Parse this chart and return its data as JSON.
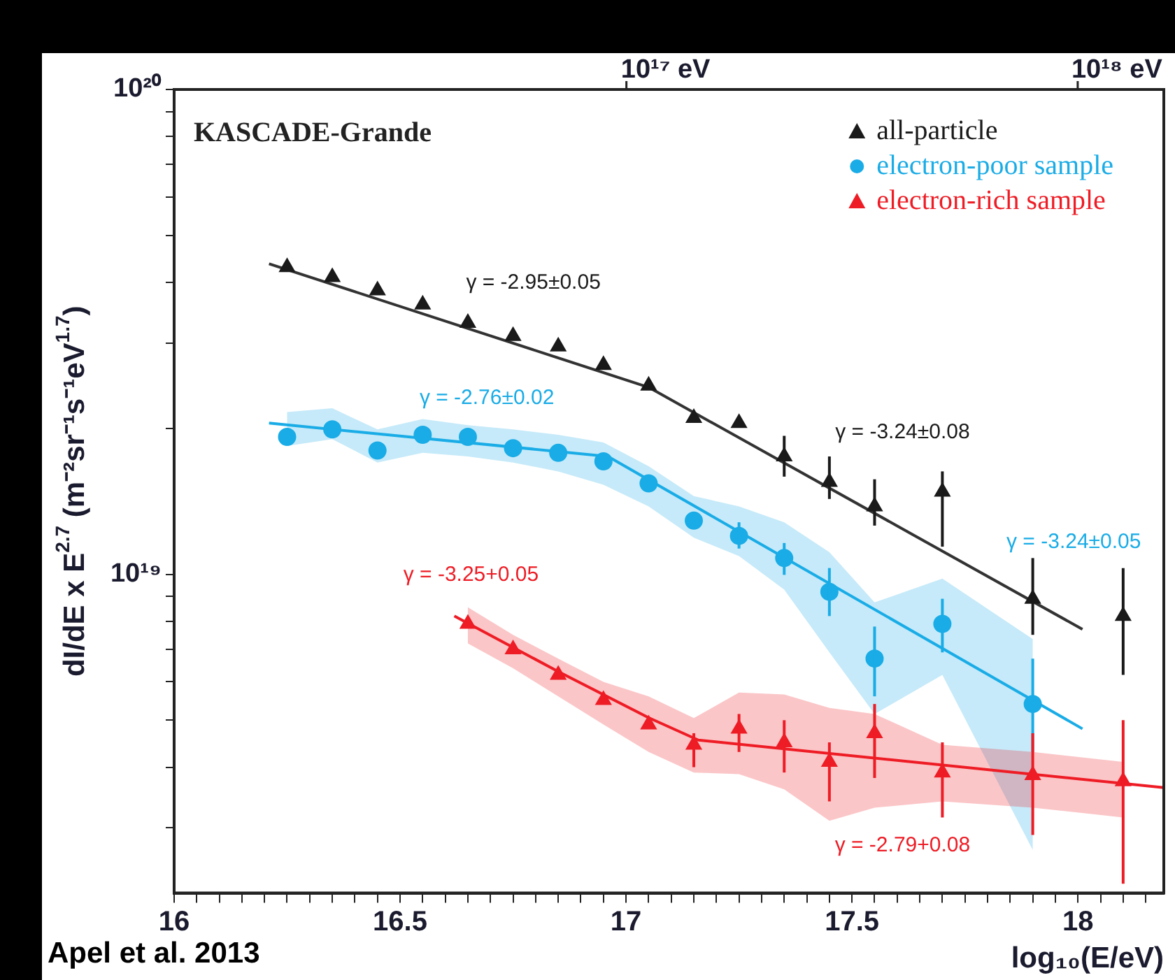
{
  "chart_data": {
    "type": "scatter",
    "ylabel": "dI/dE x E$^{2.7}$ (m⁻²sr⁻¹s⁻¹eV$^{1.7}$)",
    "xlabel": "log₁₀(E/eV)",
    "xlim": [
      16,
      18.19
    ],
    "ylim": [
      2.2e+18,
      1e+20
    ],
    "log": "y",
    "legend": "top right",
    "xticks": [
      16,
      {
        "value": 16.05,
        "label": null
      },
      {
        "value": 16.1,
        "label": null
      },
      {
        "value": 16.15,
        "label": null
      },
      {
        "value": 16.2,
        "label": null
      },
      {
        "value": 16.25,
        "label": null
      },
      {
        "value": 16.3,
        "label": null
      },
      {
        "value": 16.35,
        "label": null
      },
      {
        "value": 16.4,
        "label": null
      },
      {
        "value": 16.45,
        "label": null
      },
      16.5,
      {
        "value": 16.55,
        "label": null
      },
      {
        "value": 16.6,
        "label": null
      },
      {
        "value": 16.65,
        "label": null
      },
      {
        "value": 16.7,
        "label": null
      },
      {
        "value": 16.75,
        "label": null
      },
      {
        "value": 16.8,
        "label": null
      },
      {
        "value": 16.85,
        "label": null
      },
      {
        "value": 16.9,
        "label": null
      },
      {
        "value": 16.95,
        "label": null
      },
      17,
      {
        "value": 17.05,
        "label": null
      },
      {
        "value": 17.1,
        "label": null
      },
      {
        "value": 17.15,
        "label": null
      },
      {
        "value": 17.2,
        "label": null
      },
      {
        "value": 17.25,
        "label": null
      },
      {
        "value": 17.3,
        "label": null
      },
      {
        "value": 17.35,
        "label": null
      },
      {
        "value": 17.4,
        "label": null
      },
      {
        "value": 17.45,
        "label": null
      },
      17.5,
      {
        "value": 17.55,
        "label": null
      },
      {
        "value": 17.6,
        "label": null
      },
      {
        "value": 17.65,
        "label": null
      },
      {
        "value": 17.7,
        "label": null
      },
      {
        "value": 17.75,
        "label": null
      },
      {
        "value": 17.8,
        "label": null
      },
      {
        "value": 17.85,
        "label": null
      },
      {
        "value": 17.9,
        "label": null
      },
      {
        "value": 17.95,
        "label": null
      },
      18,
      {
        "value": 18.05,
        "label": null
      },
      {
        "value": 18.1,
        "label": null
      },
      {
        "value": 18.15,
        "label": null
      }
    ],
    "yticks": [
      {
        "value": 3e+18,
        "label": null
      },
      {
        "value": 4e+18,
        "label": null
      },
      {
        "value": 5e+18,
        "label": null
      },
      {
        "value": 6e+18,
        "label": null
      },
      {
        "value": 7e+18,
        "label": null
      },
      {
        "value": 8e+18,
        "label": null
      },
      {
        "value": 9e+18,
        "label": null
      },
      {
        "value": 1e+19,
        "label": "10¹⁹"
      },
      {
        "value": 2e+19,
        "label": null
      },
      {
        "value": 3e+19,
        "label": null
      },
      {
        "value": 4e+19,
        "label": null
      },
      {
        "value": 5e+19,
        "label": null
      },
      {
        "value": 6e+19,
        "label": null
      },
      {
        "value": 7e+19,
        "label": null
      },
      {
        "value": 8e+19,
        "label": null
      },
      {
        "value": 9e+19,
        "label": null
      },
      {
        "value": 1e+20,
        "label": "10²⁰"
      }
    ],
    "series": [
      {
        "name": "all-particle",
        "color": "#1a1a1a",
        "marker": "triangle",
        "x": [
          16.25,
          16.35,
          16.45,
          16.55,
          16.65,
          16.75,
          16.85,
          16.95,
          17.05,
          17.15,
          17.25,
          17.35,
          17.45,
          17.55,
          17.7,
          17.9,
          18.1
        ],
        "values": [
          4.3e+19,
          4.1e+19,
          3.85e+19,
          3.6e+19,
          3.3e+19,
          3.1e+19,
          2.95e+19,
          2.7e+19,
          2.45e+19,
          2.1e+19,
          2.05e+19,
          1.75e+19,
          1.55e+19,
          1.38e+19,
          1.48e+19,
          8.9e+18,
          8.2e+18
        ],
        "errors": [
          null,
          null,
          null,
          null,
          null,
          null,
          null,
          null,
          null,
          null,
          null,
          [
            1.59e+19,
            1.93e+19
          ],
          [
            1.43e+19,
            1.75e+19
          ],
          [
            1.26e+19,
            1.57e+19
          ],
          [
            1.14e+19,
            1.63e+19
          ],
          [
            7.5e+18,
            1.08e+19
          ],
          [
            6.2e+18,
            1.03e+19
          ]
        ]
      },
      {
        "name": "electron-poor sample",
        "color": "#1aace6",
        "marker": "circle",
        "x": [
          16.25,
          16.35,
          16.45,
          16.55,
          16.65,
          16.75,
          16.85,
          16.95,
          17.05,
          17.15,
          17.25,
          17.35,
          17.45,
          17.55,
          17.7,
          17.9
        ],
        "values": [
          1.92e+19,
          1.99e+19,
          1.8e+19,
          1.94e+19,
          1.92e+19,
          1.82e+19,
          1.78e+19,
          1.71e+19,
          1.54e+19,
          1.29e+19,
          1.2e+19,
          1.08e+19,
          9.2e+18,
          6.7e+18,
          7.9e+18,
          5.4e+18
        ],
        "errors": [
          null,
          null,
          null,
          null,
          null,
          null,
          null,
          null,
          null,
          null,
          [
            1.13e+19,
            1.28e+19
          ],
          [
            9.97e+18,
            1.16e+19
          ],
          [
            8.2e+18,
            1.03e+19
          ],
          [
            5.6e+18,
            7.8e+18
          ],
          [
            6.9e+18,
            8.9e+18
          ],
          [
            4.3e+18,
            6.7e+18
          ]
        ],
        "lower": [
          1.84e+19,
          1.9e+19,
          1.7e+19,
          1.78e+19,
          1.75e+19,
          1.7e+19,
          1.63e+19,
          1.53e+19,
          1.38e+19,
          1.19e+19,
          1.09e+19,
          9.3e+18,
          6.9e+18,
          5.15e+18,
          6.2e+18,
          2.7e+18
        ],
        "upper": [
          2.16e+19,
          2.2e+19,
          1.99e+19,
          2.09e+19,
          2.03e+19,
          1.99e+19,
          1.94e+19,
          1.87e+19,
          1.67e+19,
          1.45e+19,
          1.38e+19,
          1.28e+19,
          1.11e+19,
          8.75e+18,
          9.8e+18,
          7.35e+18
        ]
      },
      {
        "name": "electron-rich sample",
        "color": "#ee1c25",
        "marker": "triangle",
        "x": [
          16.65,
          16.75,
          16.85,
          16.95,
          17.05,
          17.15,
          17.25,
          17.35,
          17.45,
          17.55,
          17.7,
          17.9,
          18.1
        ],
        "values": [
          7.9e+18,
          7e+18,
          6.2e+18,
          5.5e+18,
          4.9e+18,
          4.45e+18,
          4.8e+18,
          4.5e+18,
          4.1e+18,
          4.7e+18,
          3.9e+18,
          3.85e+18,
          3.74e+18
        ],
        "errors": [
          null,
          null,
          null,
          null,
          null,
          [
            4e+18,
            4.7e+18
          ],
          [
            4.3e+18,
            5.15e+18
          ],
          [
            3.9e+18,
            5e+18
          ],
          [
            3.4e+18,
            4.5e+18
          ],
          [
            3.8e+18,
            5.4e+18
          ],
          [
            3.15e+18,
            4.5e+18
          ],
          [
            2.9e+18,
            4.7e+18
          ],
          [
            2.3e+18,
            5e+18
          ]
        ],
        "lower": [
          7.2e+18,
          6.4e+18,
          5.6e+18,
          4.9e+18,
          4.3e+18,
          3.9e+18,
          3.87e+18,
          3.6e+18,
          3.1e+18,
          3.3e+18,
          3.4e+18,
          3.3e+18,
          3.15e+18
        ],
        "upper": [
          8.55e+18,
          7.5e+18,
          6.7e+18,
          6e+18,
          5.6e+18,
          5.05e+18,
          5.7e+18,
          5.65e+18,
          5.3e+18,
          5.15e+18,
          4.45e+18,
          4.3e+18,
          4.1e+18
        ]
      },
      {
        "type": "line",
        "color": "#333333",
        "marker": "none",
        "x": [
          16.21,
          17.05,
          18.01
        ],
        "values": [
          4.37e+19,
          2.43e+19,
          7.7e+18
        ]
      },
      {
        "type": "line",
        "color": "#1aace6",
        "marker": "none",
        "x": [
          16.21,
          16.96,
          18.01
        ],
        "values": [
          2.05e+19,
          1.75e+19,
          4.8e+18
        ]
      },
      {
        "type": "line",
        "color": "#ee1c25",
        "marker": "none",
        "x": [
          16.62,
          16.85,
          17.05,
          17.16,
          18.19
        ],
        "values": [
          8.2e+18,
          6.3e+18,
          5.06e+18,
          4.55e+18,
          3.63e+18
        ]
      }
    ],
    "annotations": [
      "KASCADE-Grande",
      "Apel et al. 2013",
      "γ = -2.95±0.05",
      "γ = -2.76±0.02",
      "γ = -3.24±0.08",
      "γ = -3.24±0.05",
      "γ = -3.25+0.05",
      "γ = -2.79+0.08",
      "10¹⁷ eV",
      "10¹⁸ eV"
    ]
  }
}
